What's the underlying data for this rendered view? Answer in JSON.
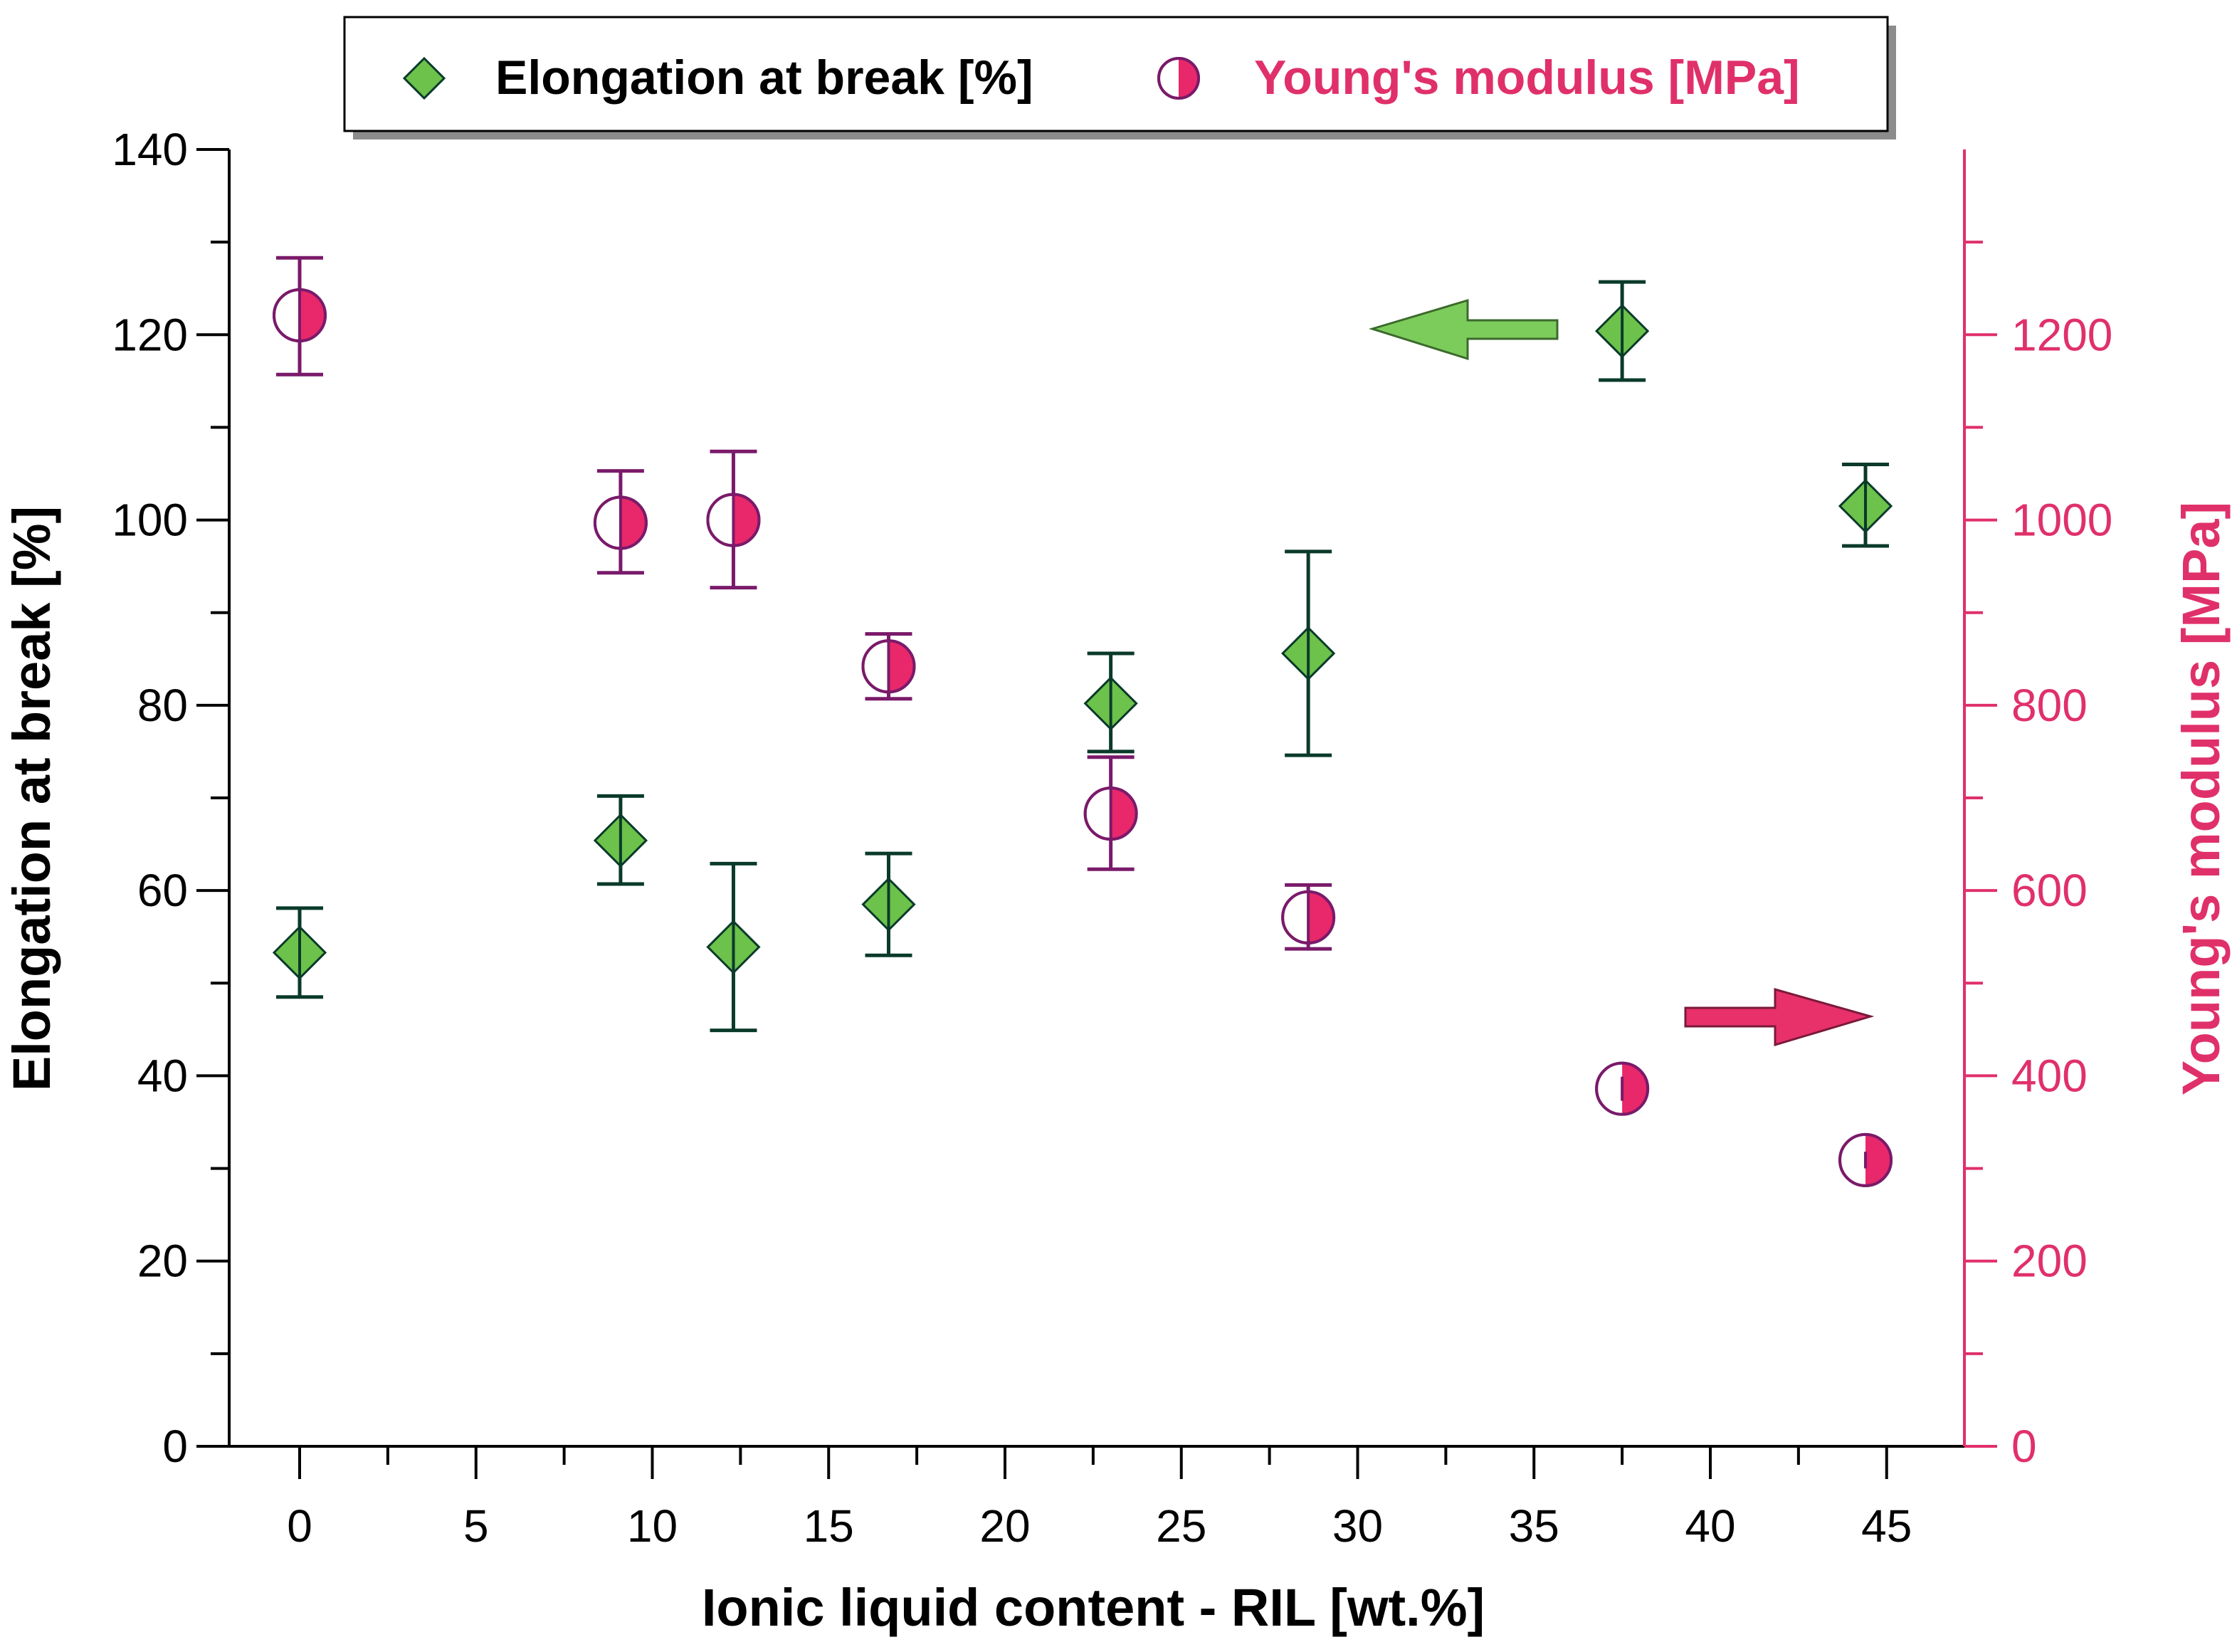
{
  "chart_data": {
    "type": "scatter",
    "xlabel": "Ionic liquid content - RIL [wt.%]",
    "ylabel_left": "Elongation at break [%]",
    "ylabel_right": "Young's modulus [MPa]",
    "xlim": [
      -2,
      47
    ],
    "ylim_left": [
      0,
      140
    ],
    "ylim_right": [
      0,
      1300
    ],
    "x_ticks": [
      "0",
      "5",
      "10",
      "15",
      "20",
      "25",
      "30",
      "35",
      "40",
      "45"
    ],
    "y_left_ticks": [
      "0",
      "20",
      "40",
      "60",
      "80",
      "100",
      "120",
      "140"
    ],
    "y_right_ticks": [
      "0",
      "200",
      "400",
      "600",
      "800",
      "1000",
      "1200"
    ],
    "legend": {
      "position": "top",
      "entries": [
        "Elongation at break [%]",
        "Young's modulus [MPa]"
      ]
    },
    "series": [
      {
        "name": "Elongation at break [%]",
        "axis": "left",
        "marker": "diamond",
        "color": "#6cc24a",
        "edge_color": "#0a3a2a",
        "points": [
          {
            "x": 0,
            "y": 53.3,
            "err_low": 48.5,
            "err_high": 58.1
          },
          {
            "x": 9.1,
            "y": 65.4,
            "err_low": 60.7,
            "err_high": 70.2
          },
          {
            "x": 12.3,
            "y": 53.9,
            "err_low": 44.9,
            "err_high": 62.9
          },
          {
            "x": 16.7,
            "y": 58.5,
            "err_low": 53.0,
            "err_high": 64.0
          },
          {
            "x": 23.0,
            "y": 80.2,
            "err_low": 75.0,
            "err_high": 85.6
          },
          {
            "x": 28.6,
            "y": 85.6,
            "err_low": 74.6,
            "err_high": 96.6
          },
          {
            "x": 37.5,
            "y": 120.4,
            "err_low": 115.1,
            "err_high": 125.7
          },
          {
            "x": 44.4,
            "y": 101.5,
            "err_low": 97.2,
            "err_high": 106.0
          }
        ]
      },
      {
        "name": "Young's modulus [MPa]",
        "axis": "right",
        "marker": "half-filled circle",
        "color": "#e8286a",
        "edge_color": "#7a1a6a",
        "points": [
          {
            "x": 0,
            "y": 1221,
            "err_low": 1157,
            "err_high": 1283
          },
          {
            "x": 9.1,
            "y": 997,
            "err_low": 943,
            "err_high": 1053
          },
          {
            "x": 12.3,
            "y": 1000,
            "err_low": 927,
            "err_high": 1074
          },
          {
            "x": 16.7,
            "y": 842,
            "err_low": 807,
            "err_high": 877
          },
          {
            "x": 23.0,
            "y": 683,
            "err_low": 623,
            "err_high": 744
          },
          {
            "x": 28.6,
            "y": 571,
            "err_low": 537,
            "err_high": 606
          },
          {
            "x": 37.5,
            "y": 386,
            "err_low": 373,
            "err_high": 399
          },
          {
            "x": 44.4,
            "y": 309,
            "err_low": 300,
            "err_high": 318
          }
        ]
      }
    ],
    "annotations": [
      {
        "type": "arrow",
        "direction": "left",
        "color": "#7ccc5c",
        "meaning": "Elongation at break axis (left)"
      },
      {
        "type": "arrow",
        "direction": "right",
        "color": "#e8306a",
        "meaning": "Young's modulus axis (right)"
      }
    ]
  }
}
